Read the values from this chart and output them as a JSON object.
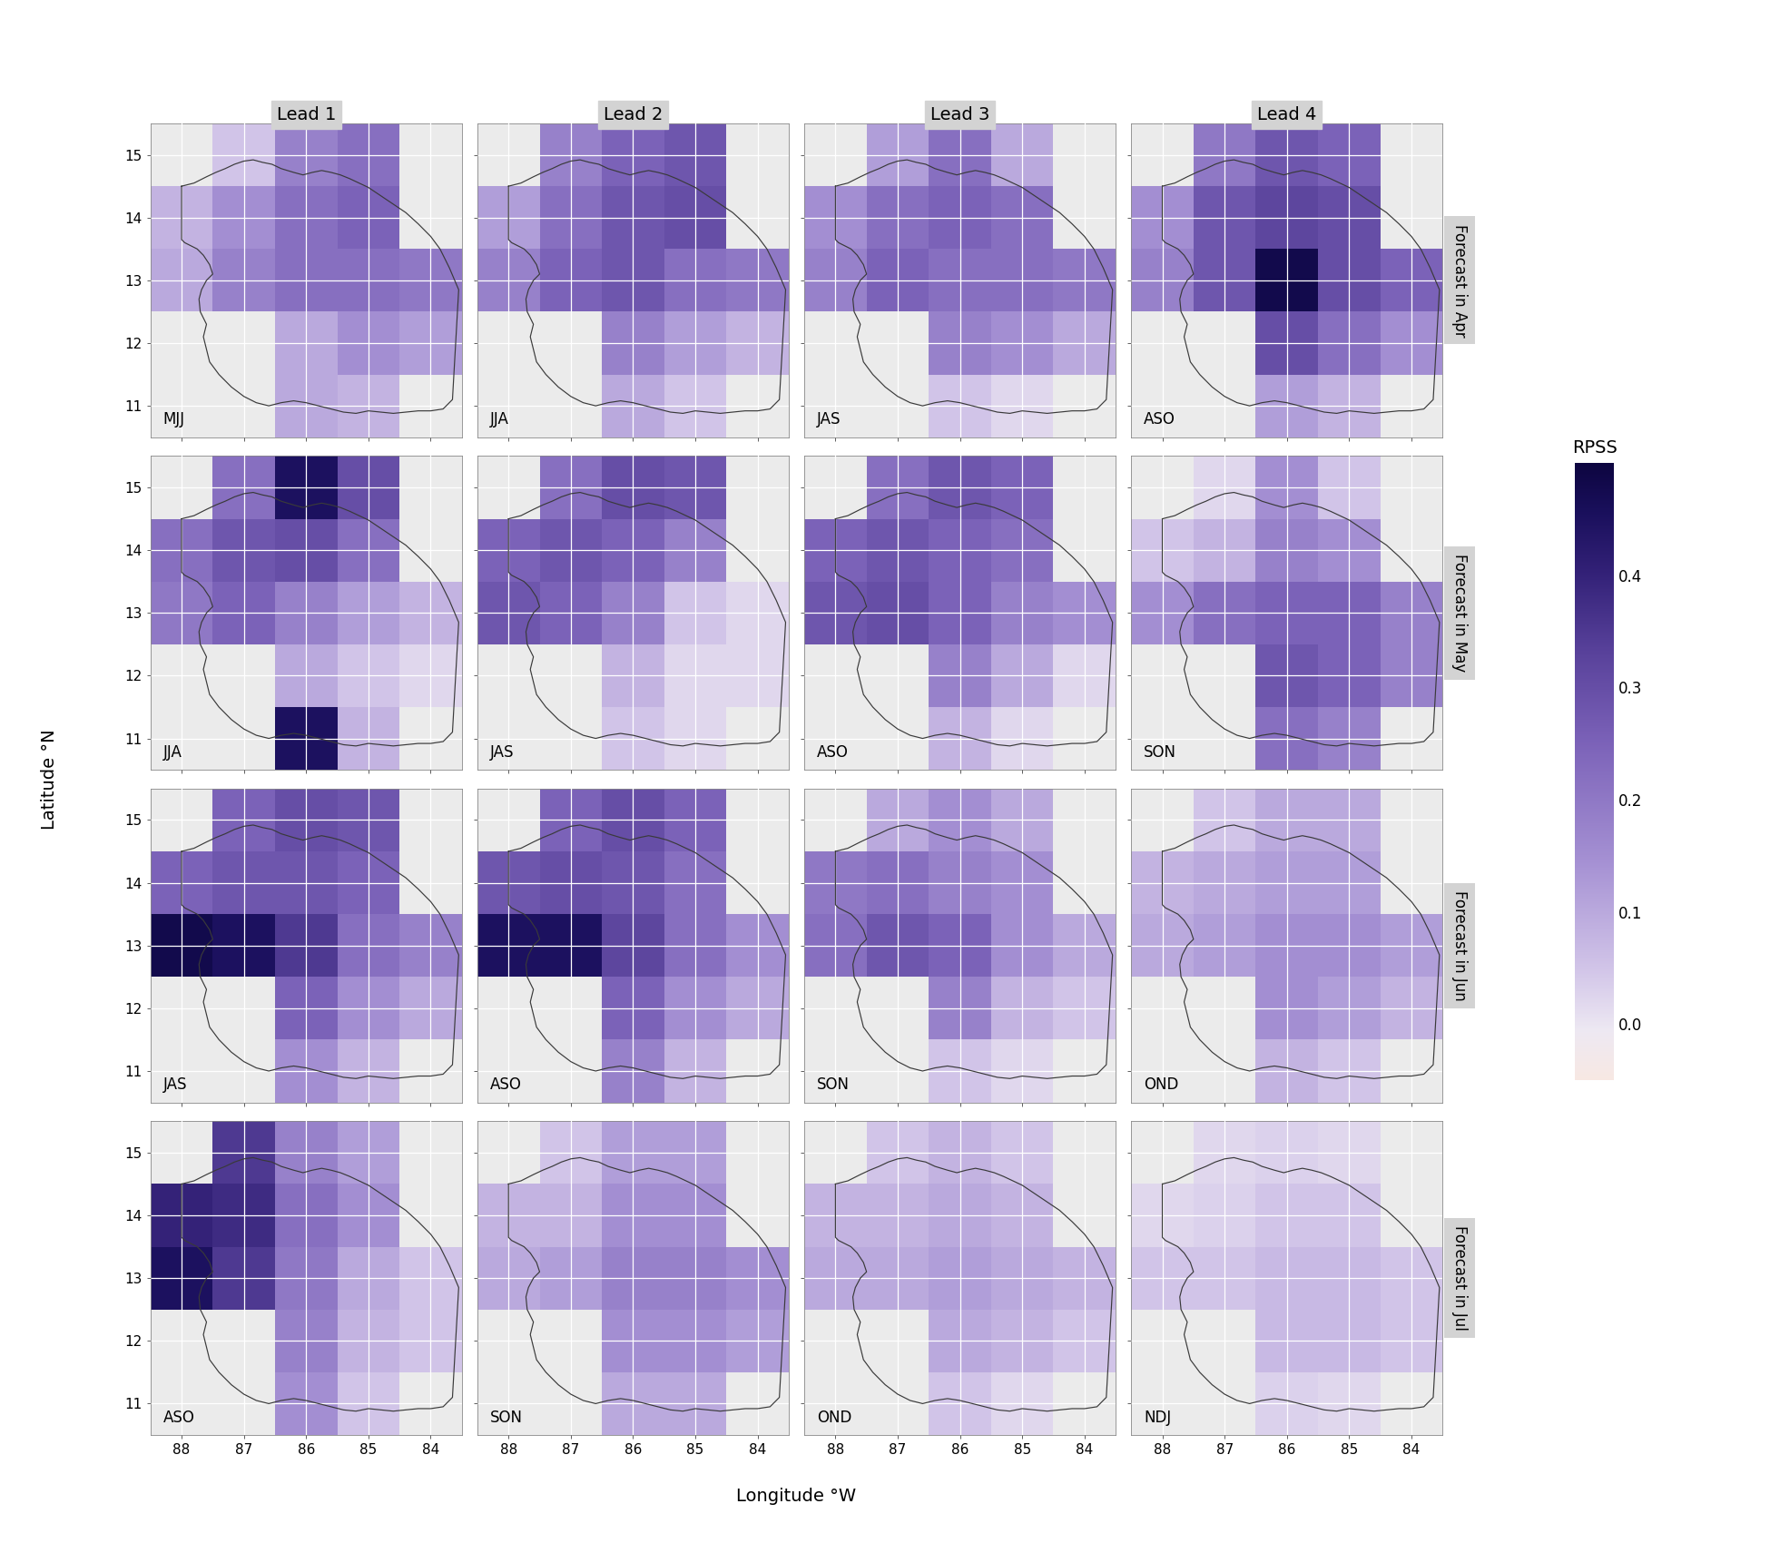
{
  "col_labels": [
    "Lead 1",
    "Lead 2",
    "Lead 3",
    "Lead 4"
  ],
  "row_labels": [
    "Forecast in Apr",
    "Forecast in May",
    "Forecast in Jun",
    "Forecast in Jul"
  ],
  "season_labels": [
    [
      "MJJ",
      "JJA",
      "JAS",
      "ASO"
    ],
    [
      "JJA",
      "JAS",
      "ASO",
      "SON"
    ],
    [
      "JAS",
      "ASO",
      "SON",
      "OND"
    ],
    [
      "ASO",
      "SON",
      "OND",
      "NDJ"
    ]
  ],
  "xlabel": "Longitude °W",
  "ylabel": "Latitude °N",
  "colorbar_label": "RPSS",
  "colorbar_ticks": [
    0.0,
    0.1,
    0.2,
    0.3,
    0.4
  ],
  "lon_edges": [
    -88.5,
    -87.5,
    -86.5,
    -85.5,
    -84.5,
    -83.5
  ],
  "lat_edges": [
    10.5,
    11.5,
    12.5,
    13.5,
    14.5,
    15.5
  ],
  "lon_ticks": [
    -88,
    -87,
    -86,
    -85,
    -84
  ],
  "lat_ticks": [
    11,
    12,
    13,
    14,
    15
  ],
  "vmin": -0.05,
  "vmax": 0.5,
  "panel_bg": "#ebebeb",
  "rpss": [
    [
      [
        [
          -99,
          0.05,
          0.18,
          0.22,
          -99
        ],
        [
          0.08,
          0.15,
          0.22,
          0.25,
          -99
        ],
        [
          0.1,
          0.18,
          0.22,
          0.22,
          0.2
        ],
        [
          -99,
          -99,
          0.1,
          0.15,
          0.12
        ],
        [
          -99,
          -99,
          0.1,
          0.08,
          -99
        ]
      ],
      [
        [
          -99,
          0.18,
          0.25,
          0.28,
          -99
        ],
        [
          0.12,
          0.22,
          0.28,
          0.3,
          -99
        ],
        [
          0.18,
          0.25,
          0.28,
          0.22,
          0.2
        ],
        [
          -99,
          -99,
          0.18,
          0.12,
          0.08
        ],
        [
          -99,
          -99,
          0.1,
          0.05,
          -99
        ]
      ],
      [
        [
          -99,
          0.12,
          0.22,
          0.1,
          -99
        ],
        [
          0.15,
          0.22,
          0.25,
          0.22,
          -99
        ],
        [
          0.18,
          0.25,
          0.22,
          0.22,
          0.2
        ],
        [
          -99,
          -99,
          0.18,
          0.15,
          0.1
        ],
        [
          -99,
          -99,
          0.05,
          0.02,
          -99
        ]
      ],
      [
        [
          -99,
          0.2,
          0.28,
          0.25,
          -99
        ],
        [
          0.15,
          0.28,
          0.32,
          0.3,
          -99
        ],
        [
          0.18,
          0.28,
          0.48,
          0.3,
          0.25
        ],
        [
          -99,
          -99,
          0.3,
          0.22,
          0.15
        ],
        [
          -99,
          -99,
          0.12,
          0.08,
          -99
        ]
      ]
    ],
    [
      [
        [
          -99,
          0.22,
          0.45,
          0.3,
          -99
        ],
        [
          0.22,
          0.28,
          0.3,
          0.22,
          -99
        ],
        [
          0.2,
          0.25,
          0.18,
          0.12,
          0.08
        ],
        [
          -99,
          -99,
          0.1,
          0.05,
          0.02
        ],
        [
          -99,
          -99,
          0.45,
          0.08,
          -99
        ]
      ],
      [
        [
          -99,
          0.22,
          0.3,
          0.28,
          -99
        ],
        [
          0.25,
          0.28,
          0.25,
          0.18,
          -99
        ],
        [
          0.28,
          0.25,
          0.18,
          0.05,
          0.02
        ],
        [
          -99,
          -99,
          0.08,
          0.02,
          0.02
        ],
        [
          -99,
          -99,
          0.05,
          0.02,
          -99
        ]
      ],
      [
        [
          -99,
          0.22,
          0.28,
          0.25,
          -99
        ],
        [
          0.25,
          0.28,
          0.25,
          0.22,
          -99
        ],
        [
          0.28,
          0.3,
          0.25,
          0.18,
          0.15
        ],
        [
          -99,
          -99,
          0.18,
          0.1,
          0.02
        ],
        [
          -99,
          -99,
          0.08,
          0.02,
          -99
        ]
      ],
      [
        [
          -99,
          0.02,
          0.15,
          0.05,
          -99
        ],
        [
          0.05,
          0.08,
          0.18,
          0.15,
          -99
        ],
        [
          0.15,
          0.22,
          0.25,
          0.25,
          0.18
        ],
        [
          -99,
          -99,
          0.28,
          0.25,
          0.18
        ],
        [
          -99,
          -99,
          0.22,
          0.18,
          -99
        ]
      ]
    ],
    [
      [
        [
          -99,
          0.25,
          0.3,
          0.28,
          -99
        ],
        [
          0.25,
          0.28,
          0.28,
          0.25,
          -99
        ],
        [
          0.48,
          0.45,
          0.35,
          0.22,
          0.18
        ],
        [
          -99,
          -99,
          0.25,
          0.15,
          0.1
        ],
        [
          -99,
          -99,
          0.15,
          0.08,
          -99
        ]
      ],
      [
        [
          -99,
          0.25,
          0.3,
          0.25,
          -99
        ],
        [
          0.28,
          0.3,
          0.28,
          0.22,
          -99
        ],
        [
          0.45,
          0.45,
          0.32,
          0.22,
          0.15
        ],
        [
          -99,
          -99,
          0.25,
          0.15,
          0.1
        ],
        [
          -99,
          -99,
          0.18,
          0.08,
          -99
        ]
      ],
      [
        [
          -99,
          0.1,
          0.15,
          0.1,
          -99
        ],
        [
          0.2,
          0.22,
          0.18,
          0.15,
          -99
        ],
        [
          0.22,
          0.28,
          0.25,
          0.15,
          0.1
        ],
        [
          -99,
          -99,
          0.18,
          0.08,
          0.05
        ],
        [
          -99,
          -99,
          0.05,
          0.02,
          -99
        ]
      ],
      [
        [
          -99,
          0.05,
          0.1,
          0.1,
          -99
        ],
        [
          0.08,
          0.1,
          0.12,
          0.12,
          -99
        ],
        [
          0.1,
          0.12,
          0.15,
          0.15,
          0.12
        ],
        [
          -99,
          -99,
          0.15,
          0.12,
          0.08
        ],
        [
          -99,
          -99,
          0.08,
          0.05,
          -99
        ]
      ]
    ],
    [
      [
        [
          -99,
          0.35,
          0.18,
          0.12,
          -99
        ],
        [
          0.4,
          0.38,
          0.22,
          0.15,
          -99
        ],
        [
          0.45,
          0.35,
          0.2,
          0.1,
          0.05
        ],
        [
          -99,
          -99,
          0.18,
          0.08,
          0.05
        ],
        [
          -99,
          -99,
          0.15,
          0.05,
          -99
        ]
      ],
      [
        [
          -99,
          0.05,
          0.12,
          0.12,
          -99
        ],
        [
          0.08,
          0.08,
          0.15,
          0.15,
          -99
        ],
        [
          0.1,
          0.12,
          0.18,
          0.18,
          0.15
        ],
        [
          -99,
          -99,
          0.15,
          0.15,
          0.12
        ],
        [
          -99,
          -99,
          0.1,
          0.1,
          -99
        ]
      ],
      [
        [
          -99,
          0.05,
          0.08,
          0.05,
          -99
        ],
        [
          0.08,
          0.08,
          0.1,
          0.08,
          -99
        ],
        [
          0.1,
          0.1,
          0.12,
          0.1,
          0.08
        ],
        [
          -99,
          -99,
          0.1,
          0.08,
          0.05
        ],
        [
          -99,
          -99,
          0.05,
          0.02,
          -99
        ]
      ],
      [
        [
          -99,
          0.02,
          0.03,
          0.02,
          -99
        ],
        [
          0.02,
          0.03,
          0.05,
          0.05,
          -99
        ],
        [
          0.05,
          0.05,
          0.07,
          0.07,
          0.05
        ],
        [
          -99,
          -99,
          0.07,
          0.07,
          0.05
        ],
        [
          -99,
          -99,
          0.03,
          0.02,
          -99
        ]
      ]
    ]
  ]
}
